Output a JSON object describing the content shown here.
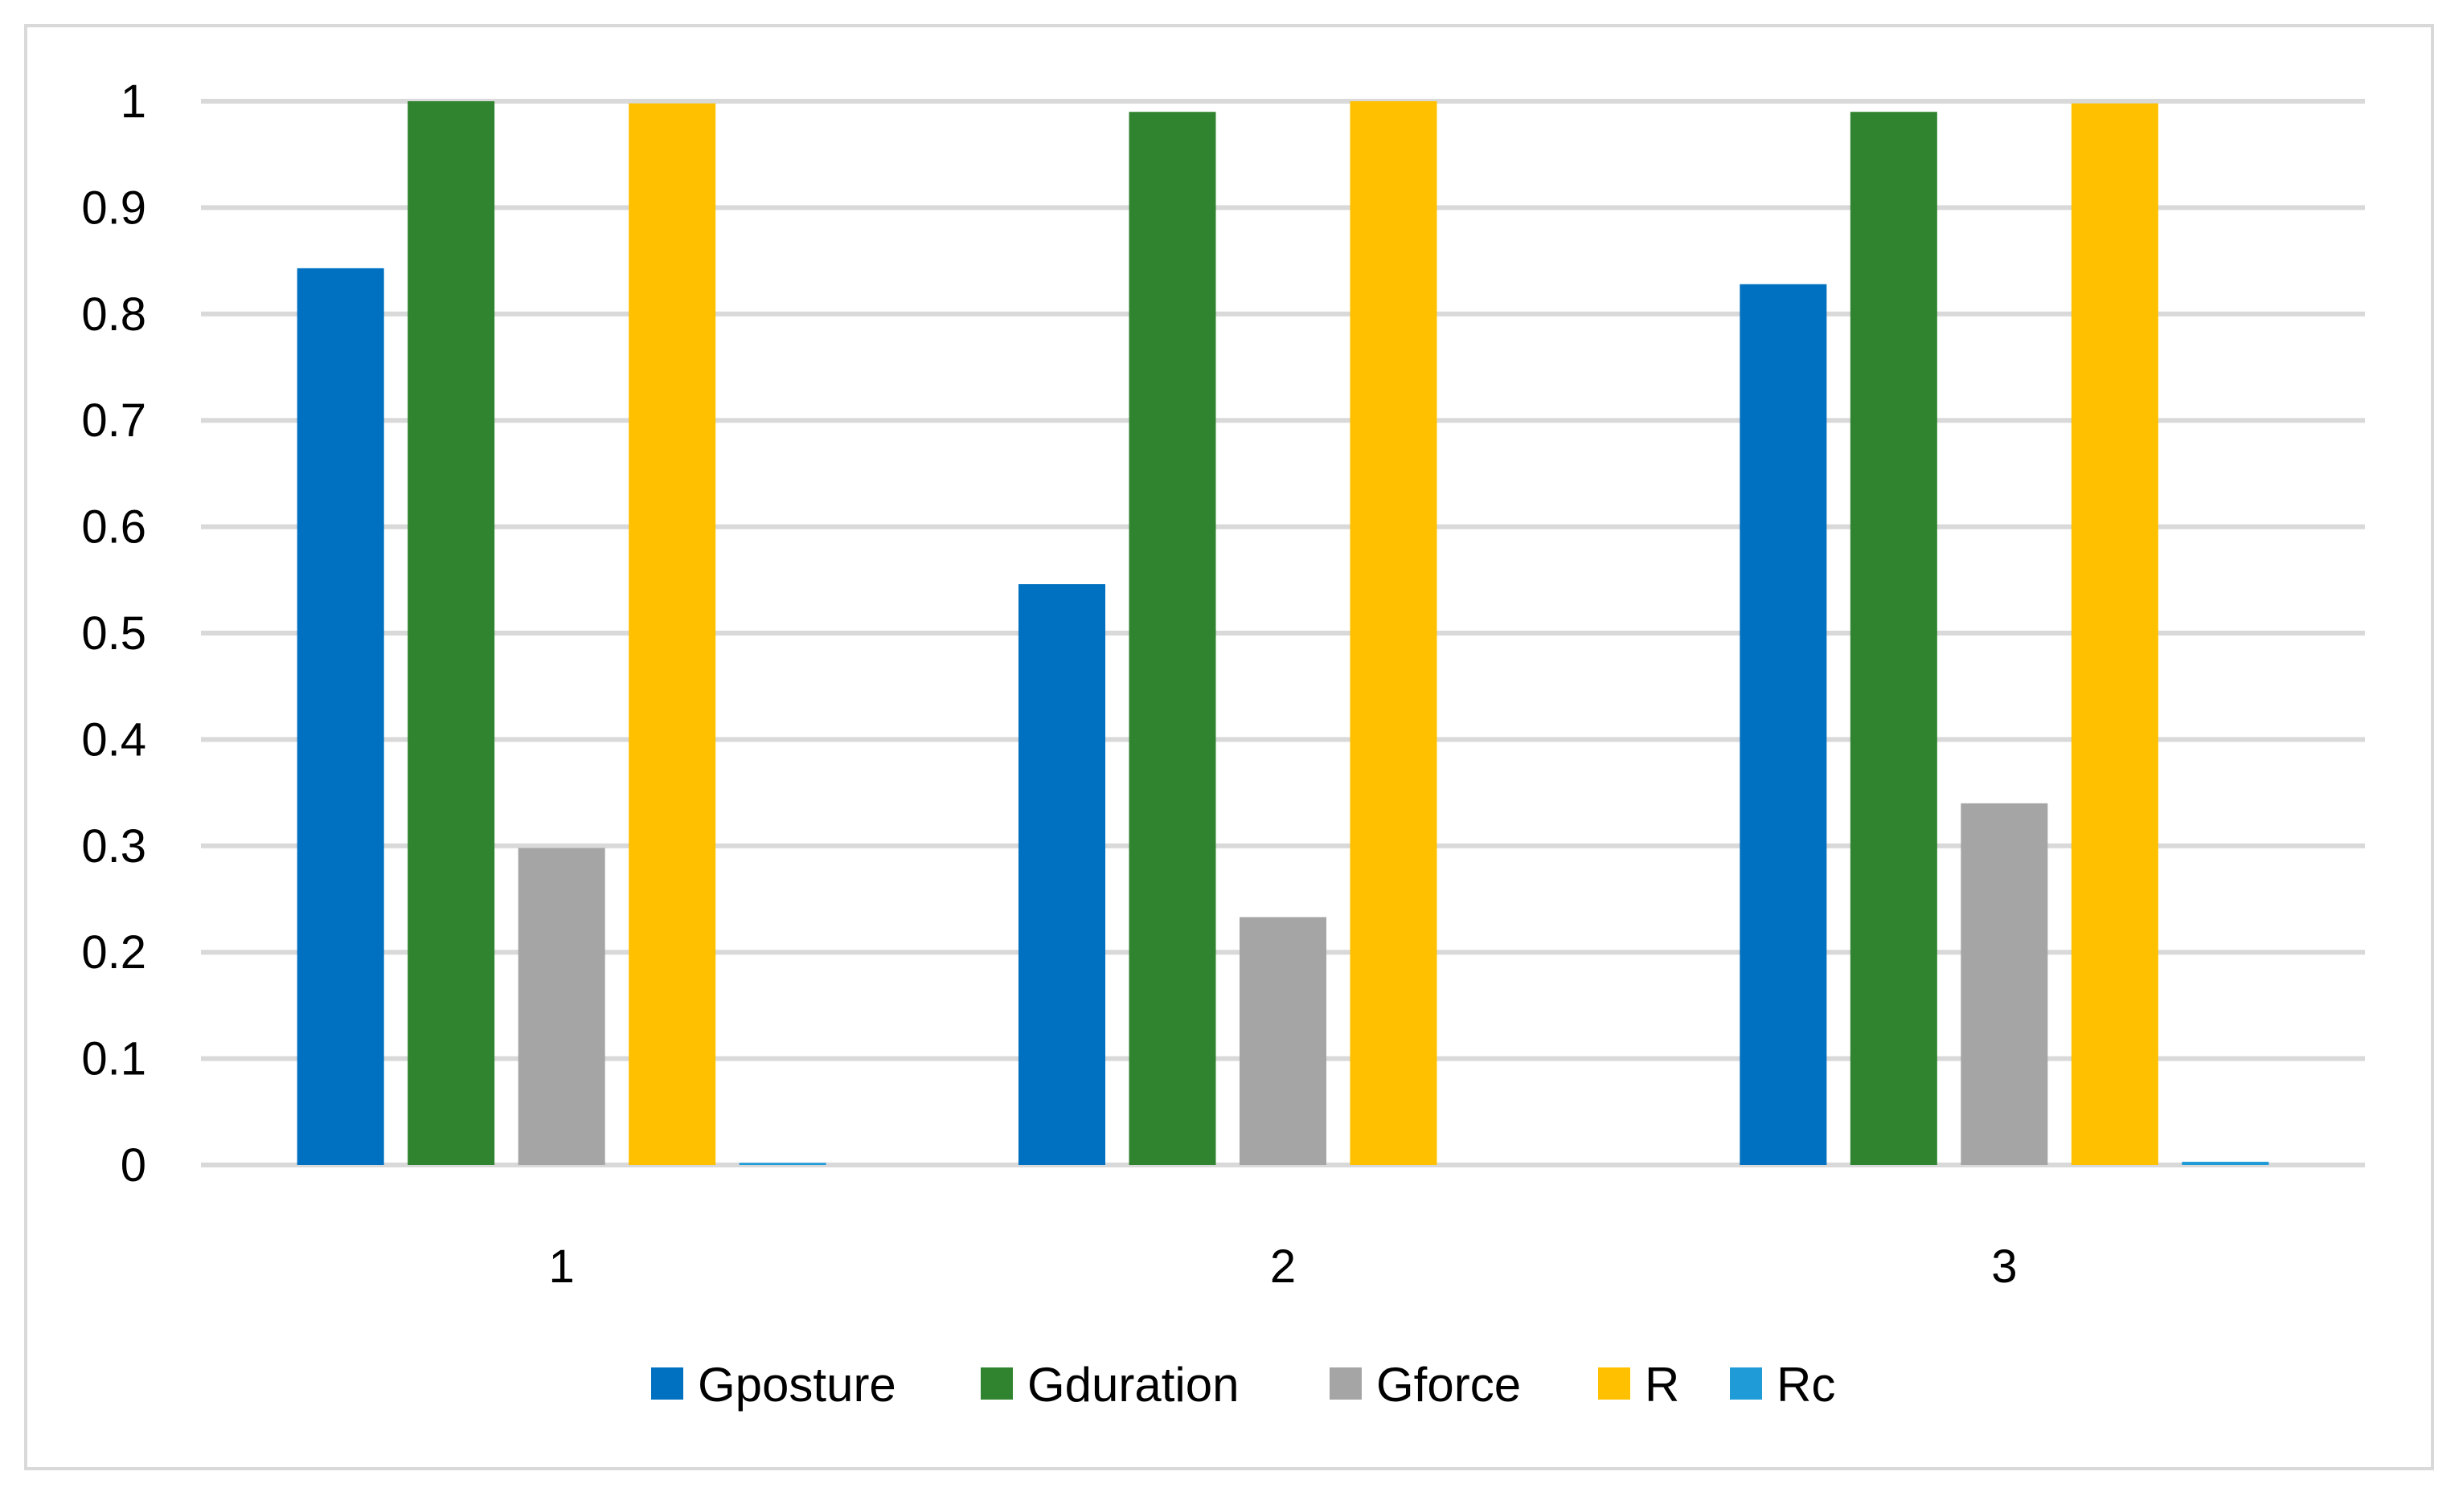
{
  "chart_data": {
    "type": "bar",
    "title": "",
    "xlabel": "",
    "ylabel": "",
    "categories": [
      "1",
      "2",
      "3"
    ],
    "ylim": [
      0,
      1
    ],
    "yticks": [
      "0",
      "0.1",
      "0.2",
      "0.3",
      "0.4",
      "0.5",
      "0.6",
      "0.7",
      "0.8",
      "0.9",
      "1"
    ],
    "grid": true,
    "legend_position": "bottom",
    "series": [
      {
        "name": "Gposture",
        "color": "#0070C0",
        "values": [
          0.843,
          0.546,
          0.828
        ]
      },
      {
        "name": "Gduration",
        "color": "#31842F",
        "values": [
          1.0,
          0.99,
          0.99
        ]
      },
      {
        "name": "Gforce",
        "color": "#A5A5A5",
        "values": [
          0.298,
          0.233,
          0.34
        ]
      },
      {
        "name": "R",
        "color": "#FFC000",
        "values": [
          0.998,
          1.0,
          0.998
        ]
      },
      {
        "name": "Rc",
        "color": "#1F9BD7",
        "values": [
          0.002,
          0.0,
          0.003
        ]
      }
    ]
  }
}
